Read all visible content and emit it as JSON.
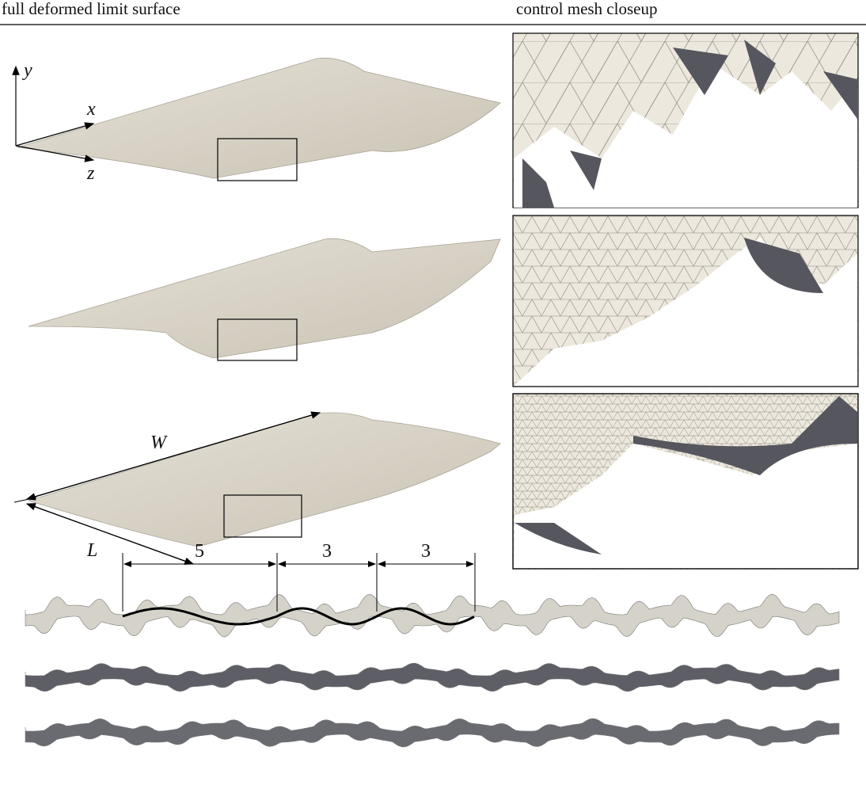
{
  "header": {
    "left": "full deformed limit surface",
    "right": "control mesh closeup"
  },
  "axes": {
    "y": "y",
    "x": "x",
    "z": "z"
  },
  "dimensions": {
    "W": "W",
    "L": "L"
  },
  "wavelengths": [
    "5",
    "3",
    "3"
  ]
}
